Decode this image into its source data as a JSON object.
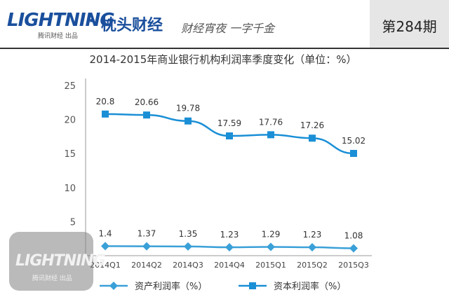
{
  "header": {
    "brand": "LIGHTNING",
    "brand_sub": "腾讯财经 出品",
    "column_name": "枕头财经",
    "slogan": "财经宵夜 一字千金",
    "issue": "第284期"
  },
  "watermark": {
    "brand": "LIGHTNING",
    "sub": "腾讯财经 出品"
  },
  "chart_data": {
    "type": "line",
    "title": "2014-2015年商业银行机构利润率季度变化（单位：%）",
    "categories": [
      "2014Q1",
      "2014Q2",
      "2014Q3",
      "2014Q4",
      "2015Q1",
      "2015Q2",
      "2015Q3"
    ],
    "y_ticks": [
      "25",
      "20",
      "15",
      "10",
      "5"
    ],
    "ylim": [
      0,
      25
    ],
    "grid": false,
    "legend_position": "bottom",
    "series": [
      {
        "name": "资产利润率（%）",
        "marker": "diamond",
        "color": "#3aa0d8",
        "values": [
          1.4,
          1.37,
          1.35,
          1.23,
          1.29,
          1.23,
          1.08
        ],
        "labels": [
          "1.4",
          "1.37",
          "1.35",
          "1.23",
          "1.29",
          "1.23",
          "1.08"
        ]
      },
      {
        "name": "资本利润率（%）",
        "marker": "square",
        "color": "#1a8fd6",
        "values": [
          20.8,
          20.66,
          19.78,
          17.59,
          17.76,
          17.26,
          15.02
        ],
        "labels": [
          "20.8",
          "20.66",
          "19.78",
          "17.59",
          "17.76",
          "17.26",
          "15.02"
        ]
      }
    ]
  }
}
